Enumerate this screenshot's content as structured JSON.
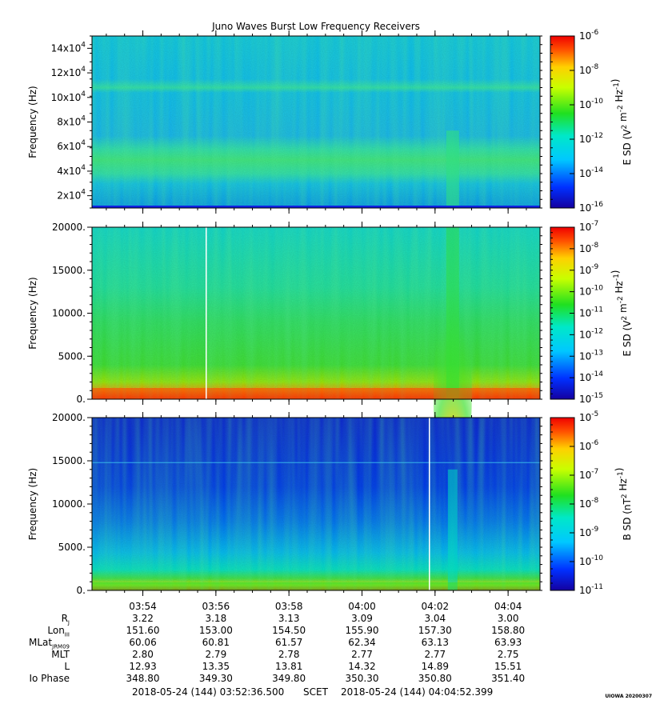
{
  "title": "Juno Waves Burst Low Frequency Receivers",
  "panels": [
    {
      "ylabel": "Frequency (Hz)",
      "yticks": [
        {
          "value": 20000,
          "label": "2x10^4",
          "mant": "2x10",
          "exp": "4"
        },
        {
          "value": 40000,
          "label": "4x10^4",
          "mant": "4x10",
          "exp": "4"
        },
        {
          "value": 60000,
          "label": "6x10^4",
          "mant": "6x10",
          "exp": "4"
        },
        {
          "value": 80000,
          "label": "8x10^4",
          "mant": "8x10",
          "exp": "4"
        },
        {
          "value": 100000,
          "label": "10x10^4",
          "mant": "10x10",
          "exp": "4"
        },
        {
          "value": 120000,
          "label": "12x10^4",
          "mant": "12x10",
          "exp": "4"
        },
        {
          "value": 140000,
          "label": "14x10^4",
          "mant": "14x10",
          "exp": "4"
        }
      ],
      "colorbar": {
        "label": "E SD (V^2 m^-2 Hz^-1)",
        "ticks": [
          {
            "exp": "-6"
          },
          {
            "exp": "-8"
          },
          {
            "exp": "-10"
          },
          {
            "exp": "-12"
          },
          {
            "exp": "-14"
          },
          {
            "exp": "-16"
          }
        ]
      }
    },
    {
      "ylabel": "Frequency (Hz)",
      "yticks": [
        {
          "value": 0,
          "label": "0."
        },
        {
          "value": 5000,
          "label": "5000."
        },
        {
          "value": 10000,
          "label": "10000."
        },
        {
          "value": 15000,
          "label": "15000."
        },
        {
          "value": 20000,
          "label": "20000."
        }
      ],
      "colorbar": {
        "label": "E SD (V^2 m^-2 Hz^-1)",
        "ticks": [
          {
            "exp": "-7"
          },
          {
            "exp": "-8"
          },
          {
            "exp": "-9"
          },
          {
            "exp": "-10"
          },
          {
            "exp": "-11"
          },
          {
            "exp": "-12"
          },
          {
            "exp": "-13"
          },
          {
            "exp": "-14"
          },
          {
            "exp": "-15"
          }
        ]
      }
    },
    {
      "ylabel": "Frequency (Hz)",
      "yticks": [
        {
          "value": 0,
          "label": "0."
        },
        {
          "value": 5000,
          "label": "5000."
        },
        {
          "value": 10000,
          "label": "10000."
        },
        {
          "value": 15000,
          "label": "15000."
        },
        {
          "value": 20000,
          "label": "20000."
        }
      ],
      "colorbar": {
        "label": "B SD (nT^2 Hz^-1)",
        "ticks": [
          {
            "exp": "-5"
          },
          {
            "exp": "-6"
          },
          {
            "exp": "-7"
          },
          {
            "exp": "-8"
          },
          {
            "exp": "-9"
          },
          {
            "exp": "-10"
          },
          {
            "exp": "-11"
          }
        ]
      }
    }
  ],
  "time_ticks": [
    "03:54",
    "03:56",
    "03:58",
    "04:00",
    "04:02",
    "04:04"
  ],
  "ephemeris": [
    {
      "name": "R",
      "sub": "J",
      "values": [
        "3.22",
        "3.18",
        "3.13",
        "3.09",
        "3.04",
        "3.00"
      ]
    },
    {
      "name": "Lon",
      "sub": "III",
      "values": [
        "151.60",
        "153.00",
        "154.50",
        "155.90",
        "157.30",
        "158.80"
      ]
    },
    {
      "name": "MLat",
      "sub": "JRM09",
      "values": [
        "60.06",
        "60.81",
        "61.57",
        "62.34",
        "63.13",
        "63.93"
      ]
    },
    {
      "name": "MLT",
      "sub": "",
      "values": [
        "2.80",
        "2.79",
        "2.78",
        "2.77",
        "2.77",
        "2.75"
      ]
    },
    {
      "name": "L",
      "sub": "",
      "values": [
        "12.93",
        "13.35",
        "13.81",
        "14.32",
        "14.89",
        "15.51"
      ]
    },
    {
      "name": "Io Phase",
      "sub": "",
      "values": [
        "348.80",
        "349.30",
        "349.80",
        "350.30",
        "350.80",
        "351.40"
      ]
    }
  ],
  "footer": {
    "start": "2018-05-24 (144) 03:52:36.500",
    "scet": "SCET",
    "end": "2018-05-24 (144) 04:04:52.399"
  },
  "credit": "UIOWA 20200307",
  "chart_data": [
    {
      "type": "heatmap",
      "title": "Juno Waves Burst Low Frequency Receivers",
      "xlabel": "",
      "ylabel": "Frequency (Hz)",
      "x_range": [
        "03:52:36.500",
        "04:04:52.399"
      ],
      "ylim": [
        10000,
        150000
      ],
      "z_label": "E SD (V^2 m^-2 Hz^-1)",
      "z_range": [
        1e-16,
        1e-06
      ],
      "z_scale": "log",
      "colormap": "rainbow"
    },
    {
      "type": "heatmap",
      "xlabel": "",
      "ylabel": "Frequency (Hz)",
      "x_range": [
        "03:52:36.500",
        "04:04:52.399"
      ],
      "ylim": [
        0,
        20000
      ],
      "z_label": "E SD (V^2 m^-2 Hz^-1)",
      "z_range": [
        1e-15,
        1e-07
      ],
      "z_scale": "log",
      "colormap": "rainbow"
    },
    {
      "type": "heatmap",
      "xlabel": "",
      "ylabel": "Frequency (Hz)",
      "x_range": [
        "03:52:36.500",
        "04:04:52.399"
      ],
      "ylim": [
        0,
        20000
      ],
      "z_label": "B SD (nT^2 Hz^-1)",
      "z_range": [
        1e-11,
        0.0001
      ],
      "z_scale": "log",
      "colormap": "rainbow"
    }
  ]
}
